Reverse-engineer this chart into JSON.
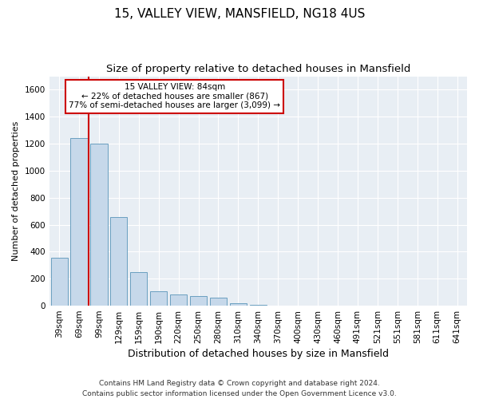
{
  "title1": "15, VALLEY VIEW, MANSFIELD, NG18 4US",
  "title2": "Size of property relative to detached houses in Mansfield",
  "xlabel": "Distribution of detached houses by size in Mansfield",
  "ylabel": "Number of detached properties",
  "footer": "Contains HM Land Registry data © Crown copyright and database right 2024.\nContains public sector information licensed under the Open Government Licence v3.0.",
  "bar_labels": [
    "39sqm",
    "69sqm",
    "99sqm",
    "129sqm",
    "159sqm",
    "190sqm",
    "220sqm",
    "250sqm",
    "280sqm",
    "310sqm",
    "340sqm",
    "370sqm",
    "400sqm",
    "430sqm",
    "460sqm",
    "491sqm",
    "521sqm",
    "551sqm",
    "581sqm",
    "611sqm",
    "641sqm"
  ],
  "bar_values": [
    355,
    1245,
    1200,
    655,
    250,
    107,
    85,
    73,
    58,
    20,
    5,
    2,
    0,
    0,
    0,
    0,
    0,
    0,
    0,
    0,
    0
  ],
  "bar_color": "#c6d8ea",
  "bar_edgecolor": "#6a9fc0",
  "ylim": [
    0,
    1700
  ],
  "yticks": [
    0,
    200,
    400,
    600,
    800,
    1000,
    1200,
    1400,
    1600
  ],
  "vline_x": 1.47,
  "vline_color": "#cc0000",
  "annotation_text": "15 VALLEY VIEW: 84sqm\n← 22% of detached houses are smaller (867)\n77% of semi-detached houses are larger (3,099) →",
  "annotation_box_color": "#ffffff",
  "annotation_box_edgecolor": "#cc0000",
  "background_color": "#e8eef4",
  "grid_color": "#ffffff",
  "fig_background": "#ffffff",
  "title1_fontsize": 11,
  "title2_fontsize": 9.5,
  "xlabel_fontsize": 9,
  "ylabel_fontsize": 8,
  "tick_fontsize": 7.5,
  "annotation_fontsize": 7.5,
  "footer_fontsize": 6.5
}
